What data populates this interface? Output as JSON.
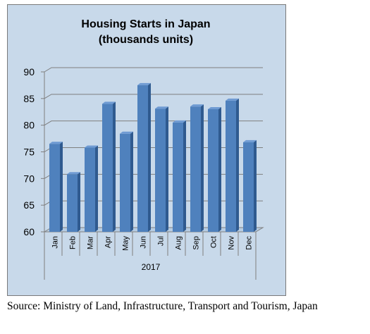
{
  "chart_data": {
    "type": "bar",
    "title": "Housing Starts in Japan",
    "subtitle": "(thousands units)",
    "categories": [
      "Jan",
      "Feb",
      "Mar",
      "Apr",
      "May",
      "Jun",
      "Jul",
      "Aug",
      "Sep",
      "Oct",
      "Nov",
      "Dec"
    ],
    "category_group": "2017",
    "series": [
      {
        "values": [
          76.5,
          70.8,
          75.8,
          84.0,
          78.4,
          87.5,
          83.1,
          80.5,
          83.5,
          83.0,
          84.6,
          76.8
        ]
      }
    ],
    "xlabel": "",
    "ylabel": "",
    "ylim": [
      60,
      90
    ],
    "yticks": [
      60,
      65,
      70,
      75,
      80,
      85,
      90
    ],
    "grid": true,
    "legend": "none",
    "colors": {
      "bar": "#4f81bd",
      "bar_top": "#6f9bd3",
      "bar_side": "#2f5a8f",
      "plot_bg": "#c8d9ea"
    }
  },
  "footer": {
    "source": "Source: Ministry of Land, Infrastructure, Transport and Tourism, Japan"
  }
}
